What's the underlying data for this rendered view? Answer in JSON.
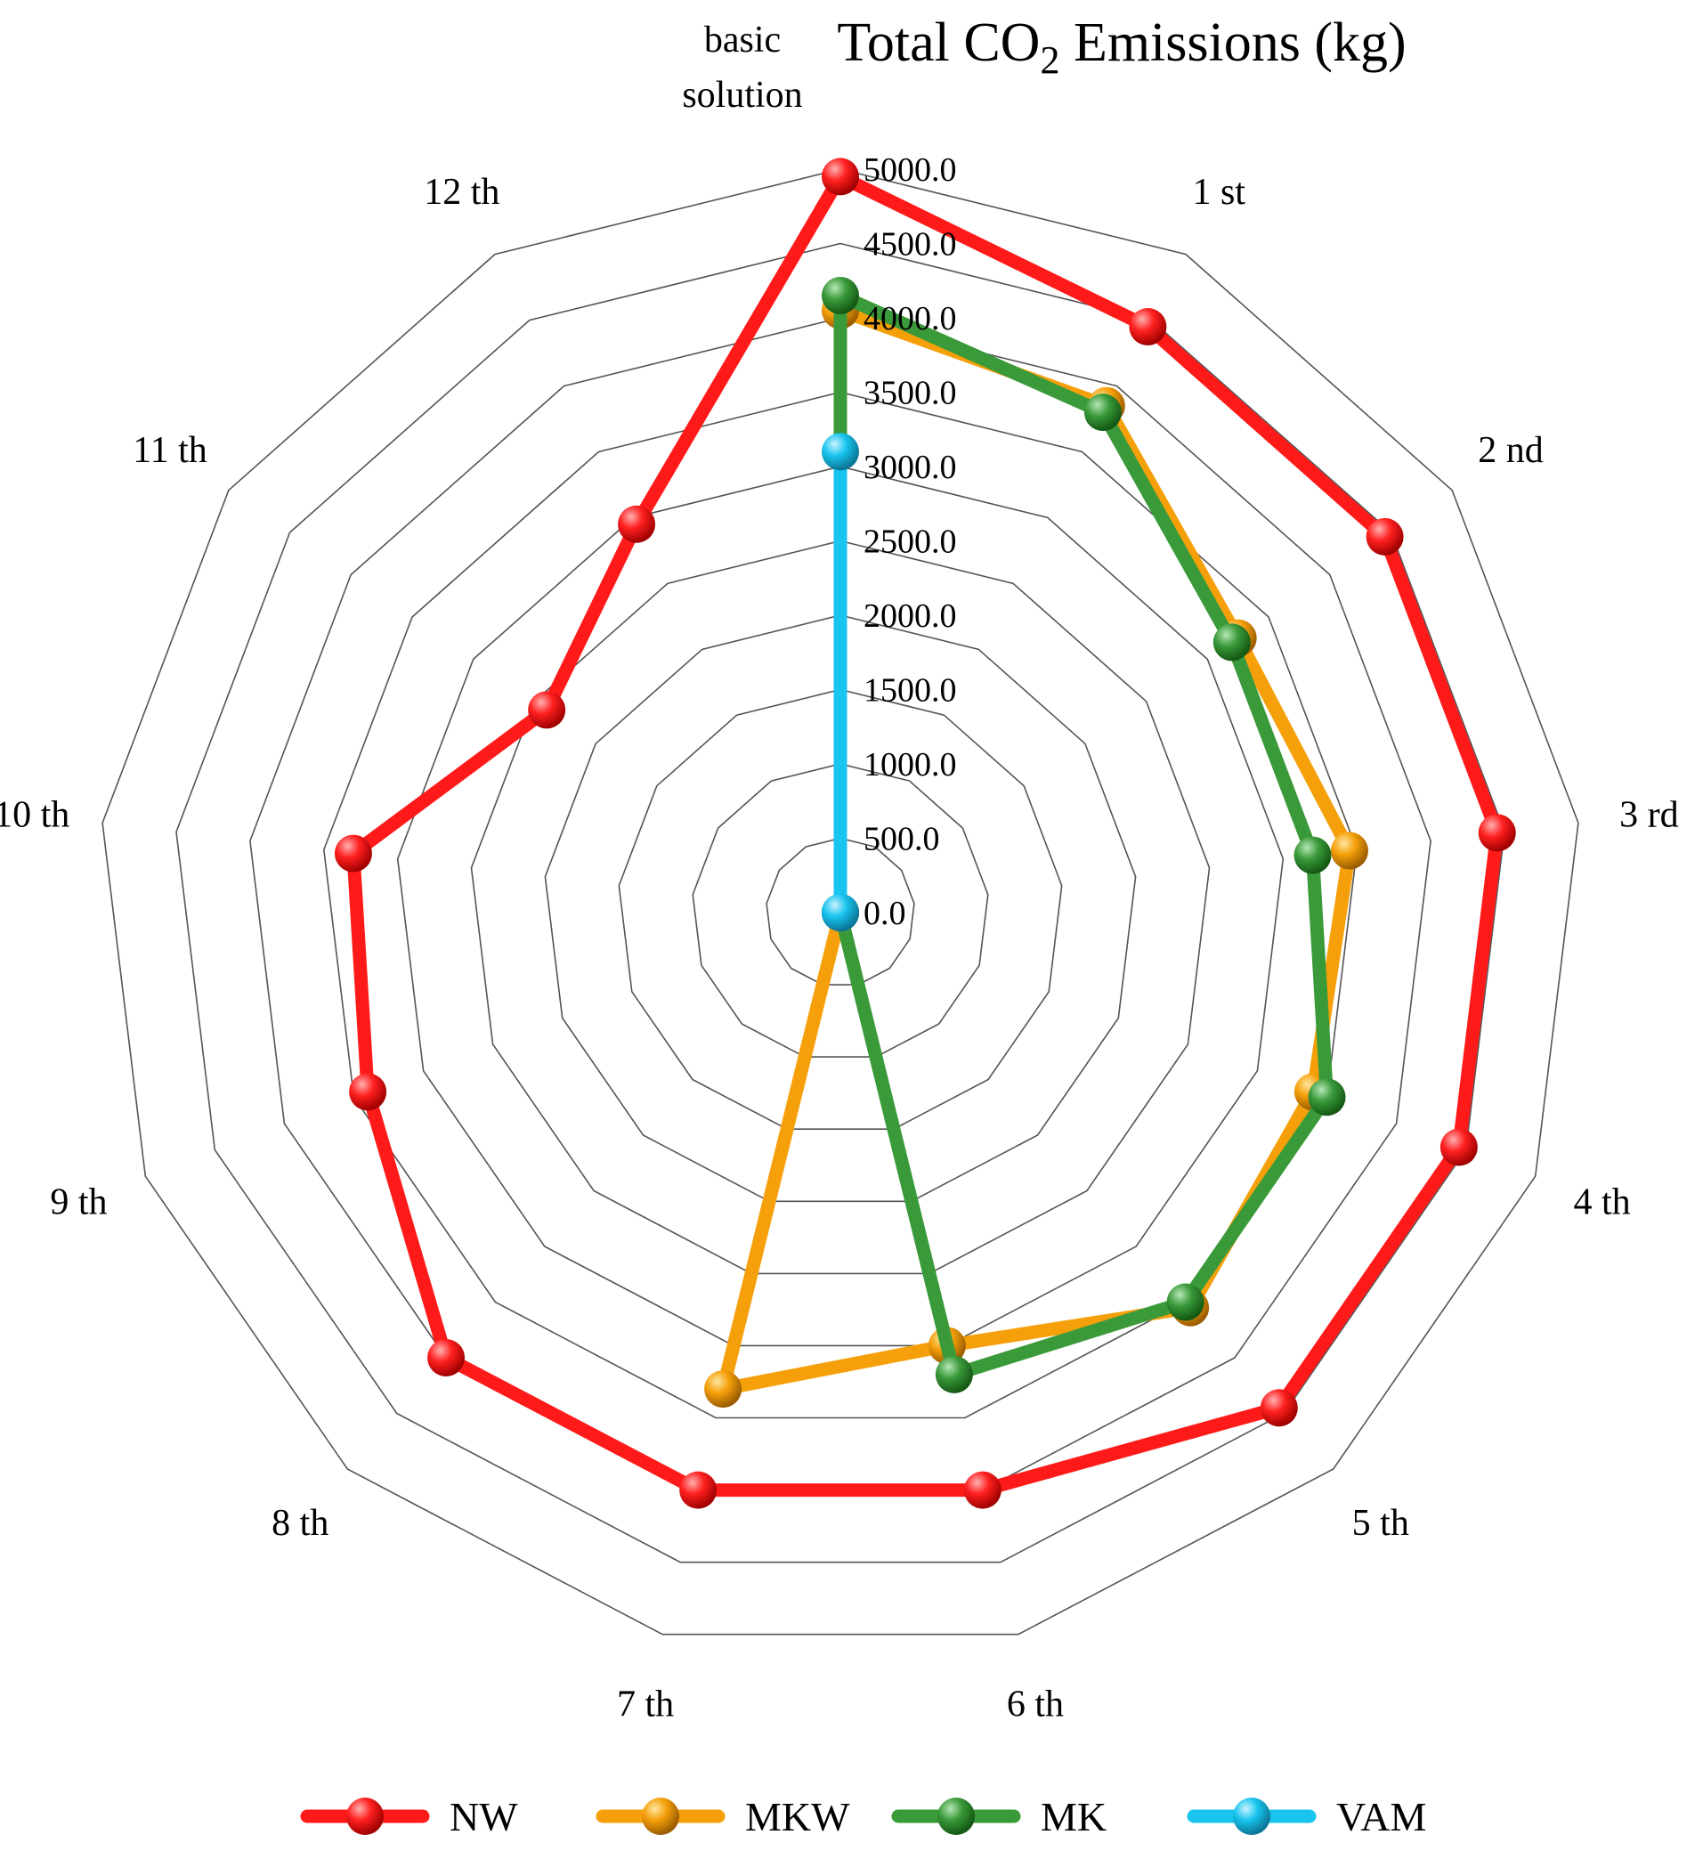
{
  "chart_data": {
    "type": "radar",
    "title": "Total CO2 Emissions (kg)",
    "title_main": "Total CO",
    "title_sub": "2",
    "title_rest": " Emissions (kg)",
    "categories": [
      "basic solution",
      "1 st",
      "2 nd",
      "3 rd",
      "4 th",
      "5 th",
      "6 th",
      "7 th",
      "8 th",
      "9 th",
      "10 th",
      "11 th",
      "12 th"
    ],
    "category_lines": [
      [
        "basic",
        "solution"
      ],
      [
        "1 st"
      ],
      [
        "2 nd"
      ],
      [
        "3 rd"
      ],
      [
        "4 th"
      ],
      [
        "5 th"
      ],
      [
        "6 th"
      ],
      [
        "7 th"
      ],
      [
        "8 th"
      ],
      [
        "9 th"
      ],
      [
        "10 th"
      ],
      [
        "11 th"
      ],
      [
        "12 th"
      ]
    ],
    "radial_ticks": [
      "0.0",
      "500.0",
      "1000.0",
      "1500.0",
      "2000.0",
      "2500.0",
      "3000.0",
      "3500.0",
      "4000.0",
      "4500.0",
      "5000.0"
    ],
    "rlim": [
      0,
      5000
    ],
    "grid": true,
    "legend_position": "bottom",
    "series": [
      {
        "name": "NW",
        "color": "#ff1a1a",
        "values": [
          4950,
          4450,
          4450,
          4450,
          4450,
          4450,
          4000,
          4000,
          4000,
          3400,
          3300,
          2400,
          2950
        ]
      },
      {
        "name": "MKW",
        "color": "#f5a00a",
        "values": [
          4050,
          3850,
          3250,
          3450,
          3400,
          3550,
          3000,
          3300,
          0,
          0,
          0,
          0,
          0
        ]
      },
      {
        "name": "MK",
        "color": "#3a9a3a",
        "values": [
          4150,
          3800,
          3200,
          3200,
          3500,
          3500,
          3200,
          0,
          0,
          0,
          0,
          0,
          0
        ]
      },
      {
        "name": "VAM",
        "color": "#19c4ee",
        "values": [
          3100,
          0,
          0,
          0,
          0,
          0,
          0,
          0,
          0,
          0,
          0,
          0,
          0
        ]
      }
    ]
  }
}
